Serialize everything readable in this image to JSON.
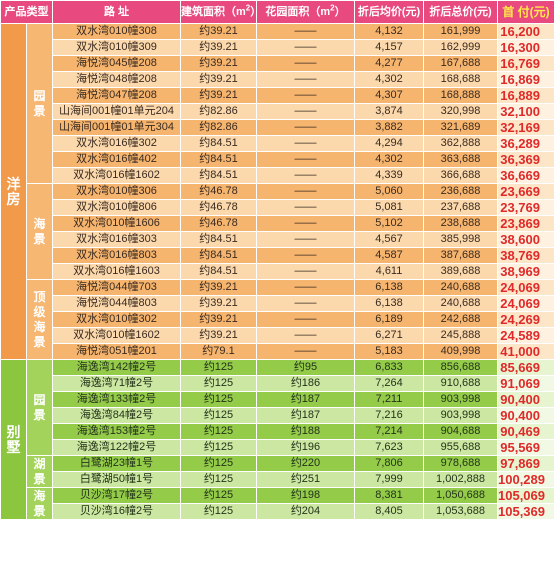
{
  "headers": {
    "category": "产品类型",
    "address": "路  址",
    "area_prefix": "建筑面积（m",
    "area_unit_exp": "2",
    "area_suffix": "）",
    "garden_prefix": "花园面积（m",
    "garden_unit_exp": "2",
    "garden_suffix": "）",
    "unit_price": "折后均价(元)",
    "total_price": "折后总价(元)",
    "down_payment": "首 付(元)"
  },
  "colors": {
    "header_bg": "#e8497e",
    "yangfang_dark": "#f6b56e",
    "yangfang_light": "#fbd9ad",
    "bieshu_dark": "#94cc4a",
    "bieshu_light": "#cce7a2",
    "down_payment_text": "#e02a2a"
  },
  "groups": [
    {
      "category": "洋房",
      "theme": "yf",
      "subgroups": [
        {
          "label": "园景",
          "rows": [
            {
              "address": "双水湾010幢308",
              "area": "约39.21",
              "garden": "——",
              "unit_price": "4,132",
              "total": "161,999",
              "down": "16,200"
            },
            {
              "address": "双水湾010幢309",
              "area": "约39.21",
              "garden": "——",
              "unit_price": "4,157",
              "total": "162,999",
              "down": "16,300"
            },
            {
              "address": "海悦湾045幢208",
              "area": "约39.21",
              "garden": "——",
              "unit_price": "4,277",
              "total": "167,688",
              "down": "16,769"
            },
            {
              "address": "海悦湾048幢208",
              "area": "约39.21",
              "garden": "——",
              "unit_price": "4,302",
              "total": "168,688",
              "down": "16,869"
            },
            {
              "address": "海悦湾047幢208",
              "area": "约39.21",
              "garden": "——",
              "unit_price": "4,307",
              "total": "168,888",
              "down": "16,889"
            },
            {
              "address": "山海间001幢01单元204",
              "area": "约82.86",
              "garden": "——",
              "unit_price": "3,874",
              "total": "320,998",
              "down": "32,100"
            },
            {
              "address": "山海间001幢01单元304",
              "area": "约82.86",
              "garden": "——",
              "unit_price": "3,882",
              "total": "321,689",
              "down": "32,169"
            },
            {
              "address": "双水湾016幢302",
              "area": "约84.51",
              "garden": "——",
              "unit_price": "4,294",
              "total": "362,888",
              "down": "36,289"
            },
            {
              "address": "双水湾016幢402",
              "area": "约84.51",
              "garden": "——",
              "unit_price": "4,302",
              "total": "363,688",
              "down": "36,369"
            },
            {
              "address": "双水湾016幢1602",
              "area": "约84.51",
              "garden": "——",
              "unit_price": "4,339",
              "total": "366,688",
              "down": "36,669"
            }
          ]
        },
        {
          "label": "海景",
          "rows": [
            {
              "address": "双水湾010幢306",
              "area": "约46.78",
              "garden": "——",
              "unit_price": "5,060",
              "total": "236,688",
              "down": "23,669"
            },
            {
              "address": "双水湾010幢806",
              "area": "约46.78",
              "garden": "——",
              "unit_price": "5,081",
              "total": "237,688",
              "down": "23,769"
            },
            {
              "address": "双水湾010幢1606",
              "area": "约46.78",
              "garden": "——",
              "unit_price": "5,102",
              "total": "238,688",
              "down": "23,869"
            },
            {
              "address": "双水湾016幢303",
              "area": "约84.51",
              "garden": "——",
              "unit_price": "4,567",
              "total": "385,998",
              "down": "38,600"
            },
            {
              "address": "双水湾016幢803",
              "area": "约84.51",
              "garden": "——",
              "unit_price": "4,587",
              "total": "387,688",
              "down": "38,769"
            },
            {
              "address": "双水湾016幢1603",
              "area": "约84.51",
              "garden": "——",
              "unit_price": "4,611",
              "total": "389,688",
              "down": "38,969"
            }
          ]
        },
        {
          "label": "顶级海景",
          "rows": [
            {
              "address": "海悦湾044幢703",
              "area": "约39.21",
              "garden": "——",
              "unit_price": "6,138",
              "total": "240,688",
              "down": "24,069"
            },
            {
              "address": "海悦湾044幢803",
              "area": "约39.21",
              "garden": "——",
              "unit_price": "6,138",
              "total": "240,688",
              "down": "24,069"
            },
            {
              "address": "双水湾010幢302",
              "area": "约39.21",
              "garden": "——",
              "unit_price": "6,189",
              "total": "242,688",
              "down": "24,269"
            },
            {
              "address": "双水湾010幢1602",
              "area": "约39.21",
              "garden": "——",
              "unit_price": "6,271",
              "total": "245,888",
              "down": "24,589"
            },
            {
              "address": "海悦湾051幢201",
              "area": "约79.1",
              "garden": "——",
              "unit_price": "5,183",
              "total": "409,998",
              "down": "41,000"
            }
          ]
        }
      ]
    },
    {
      "category": "别墅",
      "theme": "bs",
      "subgroups": [
        {
          "label": "园景",
          "rows": [
            {
              "address": "海逸湾142幢2号",
              "area": "约125",
              "garden": "约95",
              "unit_price": "6,833",
              "total": "856,688",
              "down": "85,669"
            },
            {
              "address": "海逸湾71幢2号",
              "area": "约125",
              "garden": "约186",
              "unit_price": "7,264",
              "total": "910,688",
              "down": "91,069"
            },
            {
              "address": "海逸湾133幢2号",
              "area": "约125",
              "garden": "约187",
              "unit_price": "7,211",
              "total": "903,998",
              "down": "90,400"
            },
            {
              "address": "海逸湾84幢2号",
              "area": "约125",
              "garden": "约187",
              "unit_price": "7,216",
              "total": "903,998",
              "down": "90,400"
            },
            {
              "address": "海逸湾153幢2号",
              "area": "约125",
              "garden": "约188",
              "unit_price": "7,214",
              "total": "904,688",
              "down": "90,469"
            },
            {
              "address": "海逸湾122幢2号",
              "area": "约125",
              "garden": "约196",
              "unit_price": "7,623",
              "total": "955,688",
              "down": "95,569"
            }
          ]
        },
        {
          "label": "湖景",
          "rows": [
            {
              "address": "白鹭湖23幢1号",
              "area": "约125",
              "garden": "约220",
              "unit_price": "7,806",
              "total": "978,688",
              "down": "97,869"
            },
            {
              "address": "白鹭湖50幢1号",
              "area": "约125",
              "garden": "约251",
              "unit_price": "7,999",
              "total": "1,002,888",
              "down": "100,289"
            }
          ]
        },
        {
          "label": "海景",
          "rows": [
            {
              "address": "贝沙湾17幢2号",
              "area": "约125",
              "garden": "约198",
              "unit_price": "8,381",
              "total": "1,050,688",
              "down": "105,069"
            },
            {
              "address": "贝沙湾16幢2号",
              "area": "约125",
              "garden": "约204",
              "unit_price": "8,405",
              "total": "1,053,688",
              "down": "105,369"
            }
          ]
        }
      ]
    }
  ]
}
